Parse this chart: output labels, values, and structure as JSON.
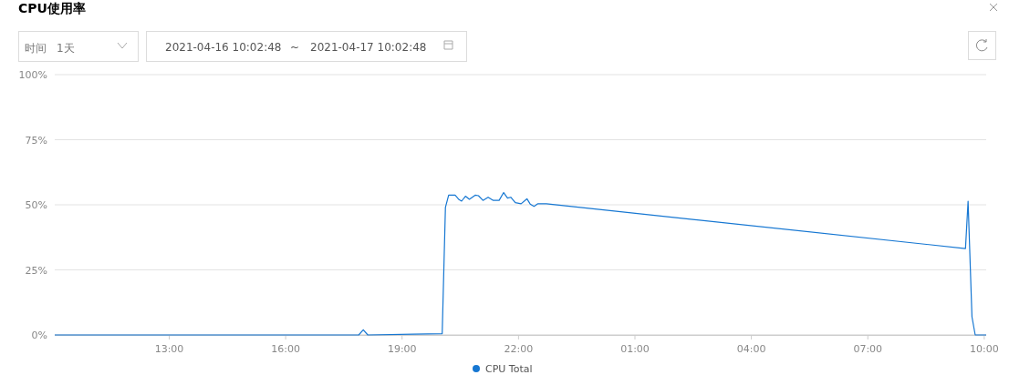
{
  "chart_data": {
    "type": "line",
    "title": "CPU使用率",
    "annotations": [
      "时间",
      "1天",
      "2021-04-16 10:02:48",
      "~",
      "2021-04-17 10:02:48"
    ],
    "x": [
      "2021-04-16T10:03",
      "2021-04-16T17:30",
      "2021-04-16T17:53",
      "2021-04-16T18:00",
      "2021-04-16T18:07",
      "2021-04-16T19:18",
      "2021-04-16T20:02",
      "2021-04-16T20:07",
      "2021-04-16T20:12",
      "2021-04-16T20:22",
      "2021-04-16T20:28",
      "2021-04-16T20:32",
      "2021-04-16T20:38",
      "2021-04-16T20:44",
      "2021-04-16T20:53",
      "2021-04-16T20:58",
      "2021-04-16T21:05",
      "2021-04-16T21:13",
      "2021-04-16T21:21",
      "2021-04-16T21:30",
      "2021-04-16T21:37",
      "2021-04-16T21:43",
      "2021-04-16T21:48",
      "2021-04-16T21:55",
      "2021-04-16T22:04",
      "2021-04-16T22:13",
      "2021-04-16T22:18",
      "2021-04-16T22:24",
      "2021-04-16T22:30",
      "2021-04-16T22:43",
      "2021-04-17T09:31",
      "2021-04-17T09:35",
      "2021-04-17T09:41",
      "2021-04-17T09:46",
      "2021-04-17T10:03"
    ],
    "series": [
      {
        "name": "CPU Total",
        "color": "#1677d2",
        "values": [
          0,
          0,
          0,
          2.0,
          0,
          0.3,
          0.5,
          49,
          53.7,
          53.7,
          52.0,
          51.4,
          53.3,
          52.1,
          53.7,
          53.5,
          51.7,
          52.9,
          51.7,
          51.7,
          54.7,
          52.6,
          52.9,
          50.8,
          50.4,
          52.3,
          50.3,
          49.4,
          50.4,
          50.4,
          33.2,
          51.4,
          7.0,
          0,
          0
        ]
      }
    ],
    "xlim": [
      "2021-04-16T10:03",
      "2021-04-17T10:03"
    ],
    "xticks": [
      {
        "value": "2021-04-16T13:00",
        "label": "13:00"
      },
      {
        "value": "2021-04-16T16:00",
        "label": "16:00"
      },
      {
        "value": "2021-04-16T19:00",
        "label": "19:00"
      },
      {
        "value": "2021-04-16T22:00",
        "label": "22:00"
      },
      {
        "value": "2021-04-17T01:00",
        "label": "01:00"
      },
      {
        "value": "2021-04-17T04:00",
        "label": "04:00"
      },
      {
        "value": "2021-04-17T07:00",
        "label": "07:00"
      },
      {
        "value": "2021-04-17T10:00",
        "label": "10:00"
      }
    ],
    "ylim": [
      0,
      100
    ],
    "yticks": [
      {
        "value": 0,
        "label": "0%"
      },
      {
        "value": 25,
        "label": "25%"
      },
      {
        "value": 50,
        "label": "50%"
      },
      {
        "value": 75,
        "label": "75%"
      },
      {
        "value": 100,
        "label": "100%"
      }
    ],
    "grid": "y",
    "legend": "bottom"
  }
}
